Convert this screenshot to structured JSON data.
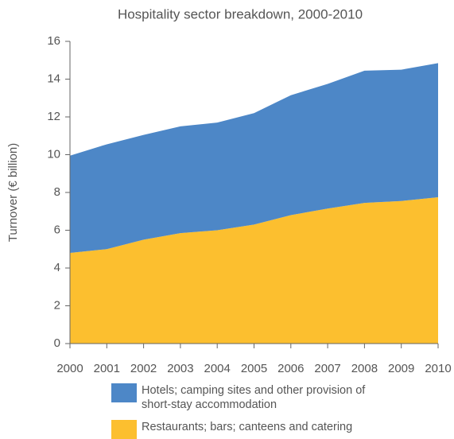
{
  "chart_data": {
    "type": "area",
    "stacked": true,
    "title": "Hospitality sector breakdown, 2000-2010",
    "y_label": "Turnover (€ billion)",
    "x": [
      2000,
      2001,
      2002,
      2003,
      2004,
      2005,
      2006,
      2007,
      2008,
      2009,
      2010
    ],
    "xlim": [
      2000,
      2010
    ],
    "xticks": [
      2000,
      2001,
      2002,
      2003,
      2004,
      2005,
      2006,
      2007,
      2008,
      2009,
      2010
    ],
    "ylim": [
      0,
      16
    ],
    "yticks": [
      0,
      2,
      4,
      6,
      8,
      10,
      12,
      14,
      16
    ],
    "grid": false,
    "legend": "bottom",
    "series": [
      {
        "name": "Hotels; camping sites and other provision of short-stay accommodation",
        "color": "#4d87c7",
        "values": [
          5.15,
          5.55,
          5.55,
          5.65,
          5.7,
          5.9,
          6.35,
          6.6,
          7.0,
          6.95,
          7.1
        ]
      },
      {
        "name": "Restaurants; bars; canteens and catering",
        "color": "#fcbf2f",
        "values": [
          4.8,
          5.0,
          5.5,
          5.85,
          6.0,
          6.3,
          6.8,
          7.15,
          7.45,
          7.55,
          7.75
        ]
      }
    ]
  }
}
